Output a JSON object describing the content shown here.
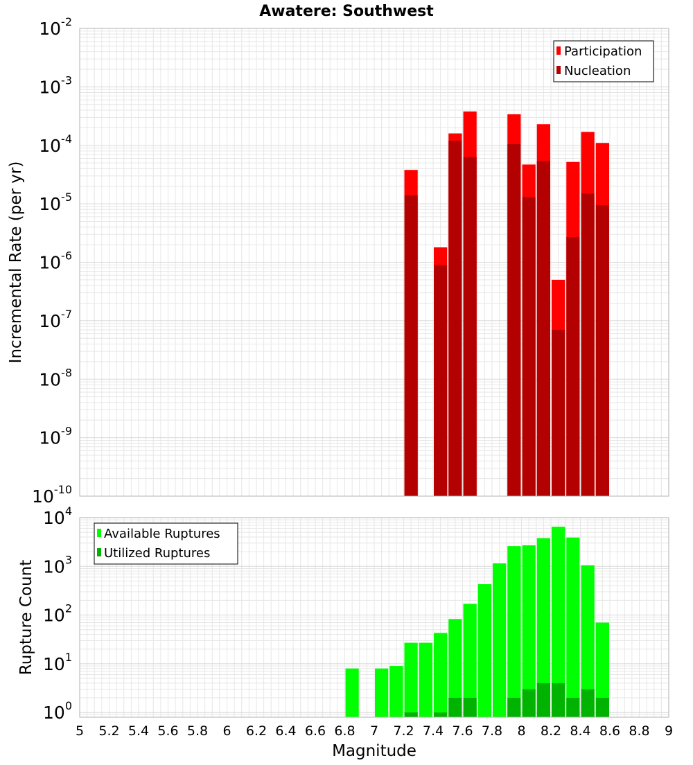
{
  "title": "Awatere: Southwest",
  "xlabel": "Magnitude",
  "x_ticks": [
    "5",
    "5.2",
    "5.4",
    "5.6",
    "5.8",
    "6",
    "6.2",
    "6.4",
    "6.6",
    "6.8",
    "7",
    "7.2",
    "7.4",
    "7.6",
    "7.8",
    "8",
    "8.2",
    "8.4",
    "8.6",
    "8.8",
    "9"
  ],
  "colors": {
    "participation": "#ff0000",
    "nucleation": "#b30000",
    "available": "#00ff00",
    "utilized": "#00b300",
    "grid": "#e6e6e6",
    "frame": "#b0b0b0"
  },
  "chart_data": [
    {
      "type": "bar",
      "ylabel": "Incremental Rate (per yr)",
      "yscale": "log",
      "ylim": [
        1e-10,
        0.01
      ],
      "y_ticks": [
        {
          "base": "10",
          "exp": "-10"
        },
        {
          "base": "10",
          "exp": "-9"
        },
        {
          "base": "10",
          "exp": "-8"
        },
        {
          "base": "10",
          "exp": "-7"
        },
        {
          "base": "10",
          "exp": "-6"
        },
        {
          "base": "10",
          "exp": "-5"
        },
        {
          "base": "10",
          "exp": "-4"
        },
        {
          "base": "10",
          "exp": "-3"
        },
        {
          "base": "10",
          "exp": "-2"
        }
      ],
      "x": [
        7.25,
        7.45,
        7.55,
        7.65,
        7.95,
        8.05,
        8.15,
        8.25,
        8.35,
        8.45,
        8.55
      ],
      "legend": {
        "position": "top-right"
      },
      "series": [
        {
          "name": "Participation",
          "values": [
            3.8e-05,
            1.8e-06,
            0.00016,
            0.00038,
            0.00034,
            4.7e-05,
            0.00023,
            5e-07,
            5.2e-05,
            0.00017,
            0.00011
          ]
        },
        {
          "name": "Nucleation",
          "values": [
            1.4e-05,
            9e-07,
            0.00012,
            6.3e-05,
            0.000105,
            1.3e-05,
            5.4e-05,
            7e-08,
            2.7e-06,
            1.5e-05,
            9.5e-06
          ]
        }
      ]
    },
    {
      "type": "bar",
      "ylabel": "Rupture Count",
      "yscale": "log",
      "ylim": [
        0.8,
        10000
      ],
      "y_ticks": [
        {
          "base": "10",
          "exp": "0"
        },
        {
          "base": "10",
          "exp": "1"
        },
        {
          "base": "10",
          "exp": "2"
        },
        {
          "base": "10",
          "exp": "3"
        },
        {
          "base": "10",
          "exp": "4"
        }
      ],
      "x": [
        6.85,
        7.05,
        7.15,
        7.25,
        7.35,
        7.45,
        7.55,
        7.65,
        7.75,
        7.85,
        7.95,
        8.05,
        8.15,
        8.25,
        8.35,
        8.45,
        8.55
      ],
      "legend": {
        "position": "top-left"
      },
      "series": [
        {
          "name": "Available Ruptures",
          "values": [
            8,
            8,
            9,
            27,
            27,
            43,
            83,
            170,
            430,
            1150,
            2600,
            2700,
            3800,
            6500,
            3900,
            1050,
            70
          ]
        },
        {
          "name": "Utilized Ruptures",
          "values": [
            null,
            null,
            null,
            1,
            null,
            1,
            2,
            2,
            null,
            null,
            2,
            3,
            4,
            4,
            2,
            3,
            2
          ]
        }
      ]
    }
  ]
}
